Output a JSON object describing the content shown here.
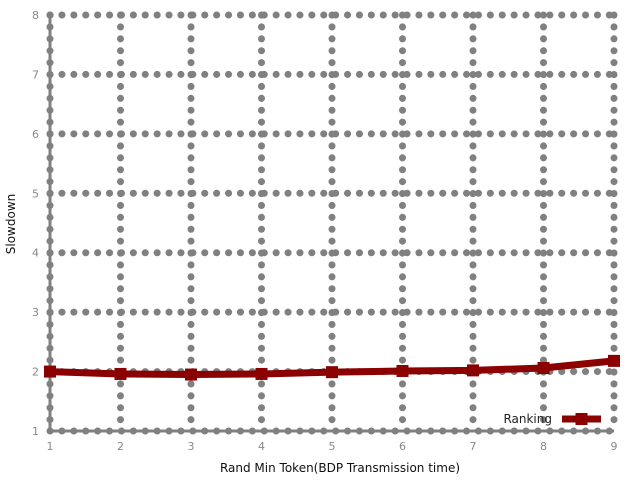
{
  "chart_data": {
    "type": "line",
    "title": "",
    "xlabel": "Rand Min Token(BDP Transmission time)",
    "ylabel": "Slowdown",
    "xlim": [
      1,
      9
    ],
    "ylim": [
      1,
      8
    ],
    "xticks": [
      1,
      2,
      3,
      4,
      5,
      6,
      7,
      8,
      9
    ],
    "yticks": [
      1,
      2,
      3,
      4,
      5,
      6,
      7,
      8
    ],
    "grid": true,
    "legend_position": "bottom-right",
    "series": [
      {
        "name": "Ranking",
        "color": "#8b0000",
        "x": [
          1,
          2,
          3,
          4,
          5,
          6,
          7,
          8,
          9
        ],
        "y": [
          2.0,
          1.96,
          1.95,
          1.96,
          1.99,
          2.01,
          2.02,
          2.06,
          2.18
        ]
      }
    ]
  },
  "colors": {
    "grid": "#808080",
    "axis": "#808080",
    "series": "#8b0000"
  }
}
